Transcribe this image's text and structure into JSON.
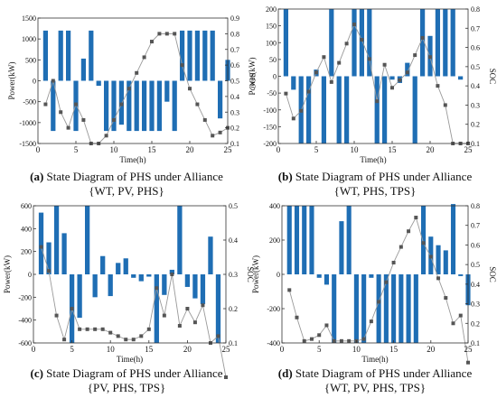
{
  "chart_data": [
    {
      "type": "bar",
      "panel": "a",
      "caption_letter": "(a)",
      "caption_line1": " State Diagram of PHS under Alliance",
      "caption_line2": "{WT, PV, PHS}",
      "xlabel": "Time(h)",
      "ylabel": "Power(kW)",
      "y2label": "SOC",
      "xlim": [
        0,
        25
      ],
      "xticks": [
        0,
        5,
        10,
        15,
        20,
        25
      ],
      "ylim": [
        -1500,
        1500
      ],
      "yticks": [
        -1500,
        -1000,
        -500,
        0,
        500,
        1000,
        1500
      ],
      "y2lim": [
        0.1,
        0.9
      ],
      "y2ticks": [
        0.1,
        0.2,
        0.3,
        0.4,
        0.5,
        0.6,
        0.7,
        0.8,
        0.9
      ],
      "series": [
        {
          "name": "Power",
          "values": [
            1200,
            -1200,
            1200,
            1200,
            -1200,
            530,
            1200,
            -120,
            -1200,
            -1200,
            -1050,
            -1200,
            -1200,
            -1200,
            -1200,
            -1200,
            -500,
            -1200,
            1200,
            1200,
            1200,
            1200,
            1200,
            -900,
            500
          ]
        },
        {
          "name": "SOC",
          "values": [
            0.35,
            0.5,
            0.3,
            0.2,
            0.35,
            0.25,
            0.1,
            0.1,
            0.15,
            0.25,
            0.35,
            0.45,
            0.55,
            0.65,
            0.75,
            0.8,
            0.8,
            0.8,
            0.6,
            0.45,
            0.35,
            0.25,
            0.15,
            0.17,
            0.2
          ]
        }
      ]
    },
    {
      "type": "bar",
      "panel": "b",
      "caption_letter": "(b)",
      "caption_line1": " State Diagram of PHS under Alliance",
      "caption_line2": "{WT, PHS, TPS}",
      "xlabel": "Time(h)",
      "ylabel": "Power(kW)",
      "y2label": "SOC",
      "xlim": [
        0,
        25
      ],
      "xticks": [
        0,
        5,
        10,
        15,
        20,
        25
      ],
      "ylim": [
        -200,
        200
      ],
      "yticks": [
        -200,
        -150,
        -100,
        -50,
        0,
        50,
        100,
        150,
        200
      ],
      "y2lim": [
        0.1,
        0.8
      ],
      "y2ticks": [
        0.1,
        0.2,
        0.3,
        0.4,
        0.5,
        0.6,
        0.7,
        0.8
      ],
      "series": [
        {
          "name": "Power",
          "values": [
            200,
            -40,
            -200,
            -200,
            20,
            -200,
            200,
            -200,
            -200,
            200,
            200,
            200,
            -200,
            -200,
            -10,
            -20,
            40,
            -200,
            200,
            120,
            200,
            200,
            200,
            -10,
            0
          ]
        },
        {
          "name": "SOC",
          "values": [
            0.36,
            0.23,
            0.27,
            0.37,
            0.47,
            0.55,
            0.42,
            0.52,
            0.62,
            0.72,
            0.64,
            0.54,
            0.32,
            0.51,
            0.39,
            0.43,
            0.47,
            0.56,
            0.65,
            0.55,
            0.4,
            0.3,
            0.1,
            0.1,
            0.1
          ]
        }
      ]
    },
    {
      "type": "bar",
      "panel": "c",
      "caption_letter": "(c)",
      "caption_line1": " State Diagram of PHS under Alliance",
      "caption_line2": "{PV, PHS, TPS}",
      "xlabel": "Time(h)",
      "ylabel": "Power(kW)",
      "y2label": "SOC",
      "xlim": [
        0,
        25
      ],
      "xticks": [
        0,
        5,
        10,
        15,
        20,
        25
      ],
      "ylim": [
        -600,
        600
      ],
      "yticks": [
        -600,
        -400,
        -200,
        0,
        200,
        400,
        600
      ],
      "y2lim": [
        0.1,
        0.5
      ],
      "y2ticks": [
        0.1,
        0.2,
        0.3,
        0.4,
        0.5
      ],
      "series": [
        {
          "name": "Power",
          "values": [
            540,
            280,
            600,
            360,
            -600,
            -380,
            600,
            -200,
            160,
            -190,
            100,
            140,
            -30,
            -60,
            -20,
            -600,
            -180,
            40,
            600,
            -110,
            -210,
            -260,
            330,
            -600,
            0
          ]
        },
        {
          "name": "SOC",
          "values": [
            0.38,
            0.31,
            0.18,
            0.11,
            0.2,
            0.14,
            0.14,
            0.14,
            0.14,
            0.13,
            0.12,
            0.11,
            0.11,
            0.12,
            0.14,
            0.26,
            0.18,
            0.3,
            0.15,
            0.2,
            0.16,
            0.21,
            0.1,
            0.12,
            0
          ]
        }
      ]
    },
    {
      "type": "bar",
      "panel": "d",
      "caption_letter": "(d)",
      "caption_line1": " State Diagram of PHS under Alliance",
      "caption_line2": "{WT, PV, PHS, TPS}",
      "xlabel": "Time(h)",
      "ylabel": "Power(kW)",
      "y2label": "SOC",
      "xlim": [
        0,
        25
      ],
      "xticks": [
        0,
        5,
        10,
        15,
        20,
        25
      ],
      "ylim": [
        -400,
        400
      ],
      "yticks": [
        -400,
        -200,
        0,
        200,
        400
      ],
      "y2lim": [
        0.1,
        0.8
      ],
      "y2ticks": [
        0.1,
        0.2,
        0.3,
        0.4,
        0.5,
        0.6,
        0.7,
        0.8
      ],
      "series": [
        {
          "name": "Power",
          "values": [
            400,
            400,
            400,
            400,
            -20,
            -60,
            -400,
            310,
            400,
            -400,
            -400,
            -20,
            -400,
            -400,
            -400,
            -400,
            -400,
            -400,
            400,
            220,
            170,
            140,
            410,
            -10,
            -180
          ]
        },
        {
          "name": "SOC",
          "values": [
            0.37,
            0.23,
            0.11,
            0.12,
            0.14,
            0.19,
            0.11,
            0.11,
            0.11,
            0.11,
            0.12,
            0.21,
            0.31,
            0.41,
            0.51,
            0.59,
            0.67,
            0.74,
            0.61,
            0.54,
            0.43,
            0.33,
            0.2,
            0.24,
            0
          ]
        }
      ]
    }
  ],
  "panel_order": [
    "a",
    "b",
    "c",
    "d"
  ],
  "colors": {
    "bar": "#1f6eb4",
    "soc_line": "#9a9a9a",
    "soc_marker": "#555555",
    "axis": "#333333"
  }
}
